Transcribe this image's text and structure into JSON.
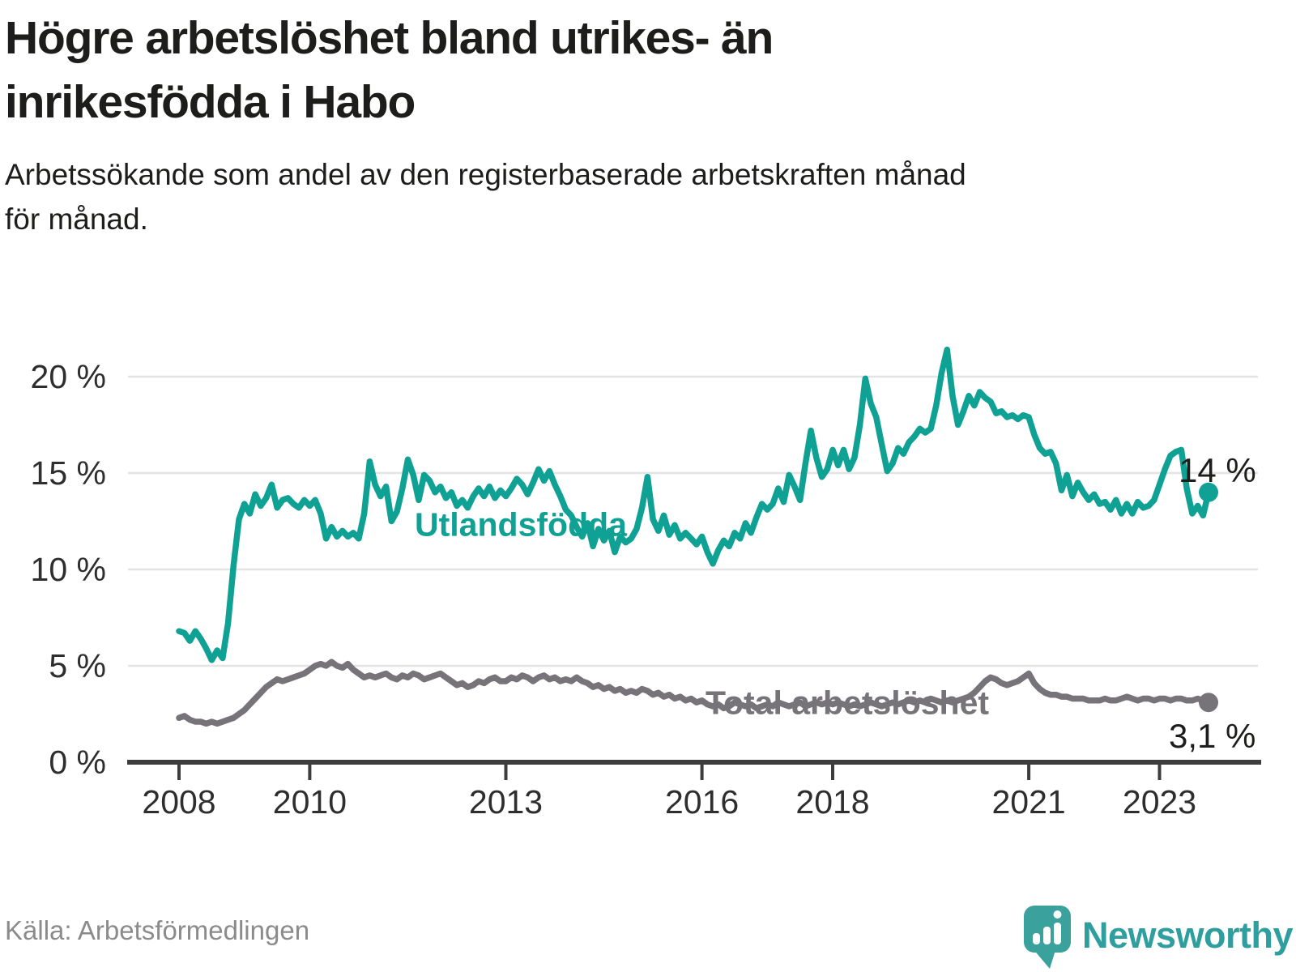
{
  "header": {
    "title_line1": "Högre arbetslöshet bland utrikes- än",
    "title_line2": "inrikesfödda i Habo",
    "subtitle_line1": "Arbetssökande som andel av den registerbaserade arbetskraften månad",
    "subtitle_line2": "för månad."
  },
  "footer": {
    "source": "Källa: Arbetsförmedlingen",
    "logo_text": "Newsworthy"
  },
  "colors": {
    "accent_teal": "#10A195",
    "line_gray": "#767479",
    "grid": "#E4E4E4",
    "axis": "#3D3D3D",
    "text": "#1D1D1B",
    "muted": "#8B8B8B",
    "logo_teal": "#3AA19D"
  },
  "chart_data": {
    "type": "line",
    "title": "Högre arbetslöshet bland utrikes- än inrikesfödda i Habo",
    "subtitle": "Arbetssökande som andel av den registerbaserade arbetskraften månad för månad.",
    "grid": true,
    "legend_position": "inline-labels",
    "x": {
      "unit": "month",
      "start": "2008-01",
      "end": "2023-10",
      "tick_years": [
        2008,
        2010,
        2013,
        2016,
        2018,
        2021,
        2023
      ],
      "tick_labels": [
        "2008",
        "2010",
        "2013",
        "2016",
        "2018",
        "2021",
        "2023"
      ]
    },
    "y": {
      "unit": "%",
      "min": 0,
      "max": 21.5,
      "tick_values": [
        0,
        5,
        10,
        15,
        20
      ],
      "tick_labels": [
        "0 %",
        "5 %",
        "10 %",
        "15 %",
        "20 %"
      ]
    },
    "series": [
      {
        "name": "Utlandsfödda",
        "color": "#10A195",
        "end_label": "14 %",
        "end_value": 14.0,
        "values": [
          6.8,
          6.7,
          6.3,
          6.8,
          6.4,
          5.9,
          5.3,
          5.8,
          5.4,
          7.2,
          10.2,
          12.6,
          13.4,
          12.9,
          13.9,
          13.3,
          13.7,
          14.4,
          13.2,
          13.6,
          13.7,
          13.4,
          13.2,
          13.6,
          13.3,
          13.6,
          12.9,
          11.6,
          12.2,
          11.7,
          12.0,
          11.7,
          11.9,
          11.6,
          12.9,
          15.6,
          14.4,
          13.8,
          14.3,
          12.5,
          13.0,
          14.2,
          15.7,
          14.9,
          13.6,
          14.9,
          14.6,
          14.0,
          14.3,
          13.7,
          14.0,
          13.3,
          13.6,
          13.2,
          13.8,
          14.2,
          13.8,
          14.3,
          13.7,
          14.1,
          13.8,
          14.2,
          14.7,
          14.4,
          13.9,
          14.5,
          15.2,
          14.6,
          15.1,
          14.4,
          13.8,
          13.1,
          12.8,
          12.2,
          11.7,
          12.4,
          11.2,
          12.1,
          11.5,
          12.0,
          10.9,
          11.7,
          11.4,
          11.6,
          12.1,
          13.2,
          14.8,
          12.6,
          12.0,
          12.8,
          11.8,
          12.3,
          11.6,
          11.9,
          11.6,
          11.3,
          11.7,
          10.9,
          10.3,
          11.0,
          11.5,
          11.2,
          11.9,
          11.6,
          12.4,
          11.9,
          12.7,
          13.4,
          13.1,
          13.4,
          14.2,
          13.5,
          14.9,
          14.3,
          13.6,
          15.5,
          17.2,
          15.8,
          14.8,
          15.2,
          16.2,
          15.4,
          16.2,
          15.2,
          15.8,
          17.5,
          19.9,
          18.6,
          17.9,
          16.5,
          15.1,
          15.5,
          16.3,
          16.0,
          16.6,
          16.9,
          17.3,
          17.1,
          17.3,
          18.5,
          20.2,
          21.4,
          19.0,
          17.5,
          18.2,
          19.0,
          18.5,
          19.2,
          18.9,
          18.7,
          18.1,
          18.2,
          17.9,
          18.0,
          17.8,
          18.0,
          17.9,
          17.0,
          16.3,
          16.0,
          16.1,
          15.5,
          14.1,
          14.9,
          13.8,
          14.5,
          14.0,
          13.6,
          13.9,
          13.4,
          13.5,
          13.1,
          13.6,
          12.9,
          13.4,
          12.9,
          13.5,
          13.2,
          13.3,
          13.6,
          14.4,
          15.2,
          15.9,
          16.1,
          16.2,
          14.2,
          12.9,
          13.3,
          12.8,
          14.0
        ]
      },
      {
        "name": "Total arbetslöshet",
        "color": "#767479",
        "end_label": "3,1 %",
        "end_value": 3.1,
        "values": [
          2.3,
          2.4,
          2.2,
          2.1,
          2.1,
          2.0,
          2.1,
          2.0,
          2.1,
          2.2,
          2.3,
          2.5,
          2.7,
          3.0,
          3.3,
          3.6,
          3.9,
          4.1,
          4.3,
          4.2,
          4.3,
          4.4,
          4.5,
          4.6,
          4.8,
          5.0,
          5.1,
          5.0,
          5.2,
          5.0,
          4.9,
          5.1,
          4.8,
          4.6,
          4.4,
          4.5,
          4.4,
          4.5,
          4.6,
          4.4,
          4.3,
          4.5,
          4.4,
          4.6,
          4.5,
          4.3,
          4.4,
          4.5,
          4.6,
          4.4,
          4.2,
          4.0,
          4.1,
          3.9,
          4.0,
          4.2,
          4.1,
          4.3,
          4.4,
          4.2,
          4.2,
          4.4,
          4.3,
          4.5,
          4.4,
          4.2,
          4.4,
          4.5,
          4.3,
          4.4,
          4.2,
          4.3,
          4.2,
          4.4,
          4.2,
          4.1,
          3.9,
          4.0,
          3.8,
          3.9,
          3.7,
          3.8,
          3.6,
          3.7,
          3.6,
          3.8,
          3.7,
          3.5,
          3.6,
          3.4,
          3.5,
          3.3,
          3.4,
          3.2,
          3.3,
          3.1,
          3.2,
          3.0,
          2.9,
          3.0,
          2.8,
          2.9,
          3.1,
          3.0,
          2.9,
          3.0,
          2.8,
          2.9,
          3.0,
          2.9,
          3.1,
          3.0,
          2.9,
          3.0,
          3.1,
          2.9,
          3.0,
          3.1,
          3.0,
          3.1,
          3.0,
          3.1,
          3.0,
          2.9,
          3.0,
          2.9,
          3.0,
          3.1,
          3.0,
          2.9,
          3.0,
          3.1,
          3.0,
          3.1,
          3.2,
          3.1,
          3.2,
          3.1,
          3.3,
          3.2,
          3.1,
          3.2,
          3.1,
          3.2,
          3.3,
          3.4,
          3.6,
          3.9,
          4.2,
          4.4,
          4.3,
          4.1,
          4.0,
          4.1,
          4.2,
          4.4,
          4.6,
          4.1,
          3.8,
          3.6,
          3.5,
          3.5,
          3.4,
          3.4,
          3.3,
          3.3,
          3.3,
          3.2,
          3.2,
          3.2,
          3.3,
          3.2,
          3.2,
          3.3,
          3.4,
          3.3,
          3.2,
          3.3,
          3.3,
          3.2,
          3.3,
          3.3,
          3.2,
          3.3,
          3.3,
          3.2,
          3.2,
          3.3,
          3.2,
          3.1
        ]
      }
    ]
  }
}
